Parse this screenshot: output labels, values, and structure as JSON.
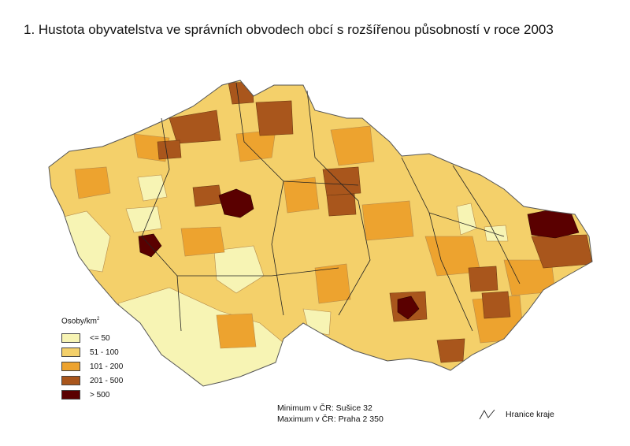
{
  "title": "1. Hustota obyvatelstva ve správních obvodech obcí s rozšířenou působností v roce 2003",
  "legend": {
    "title": "Osoby/km",
    "title_sup": "2",
    "classes": [
      {
        "label": "<= 50",
        "color": "#f7f4b4"
      },
      {
        "label": "51 - 100",
        "color": "#f4d06a"
      },
      {
        "label": "101 - 200",
        "color": "#eda32f"
      },
      {
        "label": "201 - 500",
        "color": "#a9561c"
      },
      {
        "label": "> 500",
        "color": "#5a0000"
      }
    ]
  },
  "stats": {
    "minimum": "Minimum v ČR: Sušice 32",
    "maximum": "Maximum v ČR: Praha 2 350"
  },
  "boundary_label": "Hranice kraje",
  "colors": {
    "border_district": "#b58a4a",
    "border_region": "#222222"
  }
}
